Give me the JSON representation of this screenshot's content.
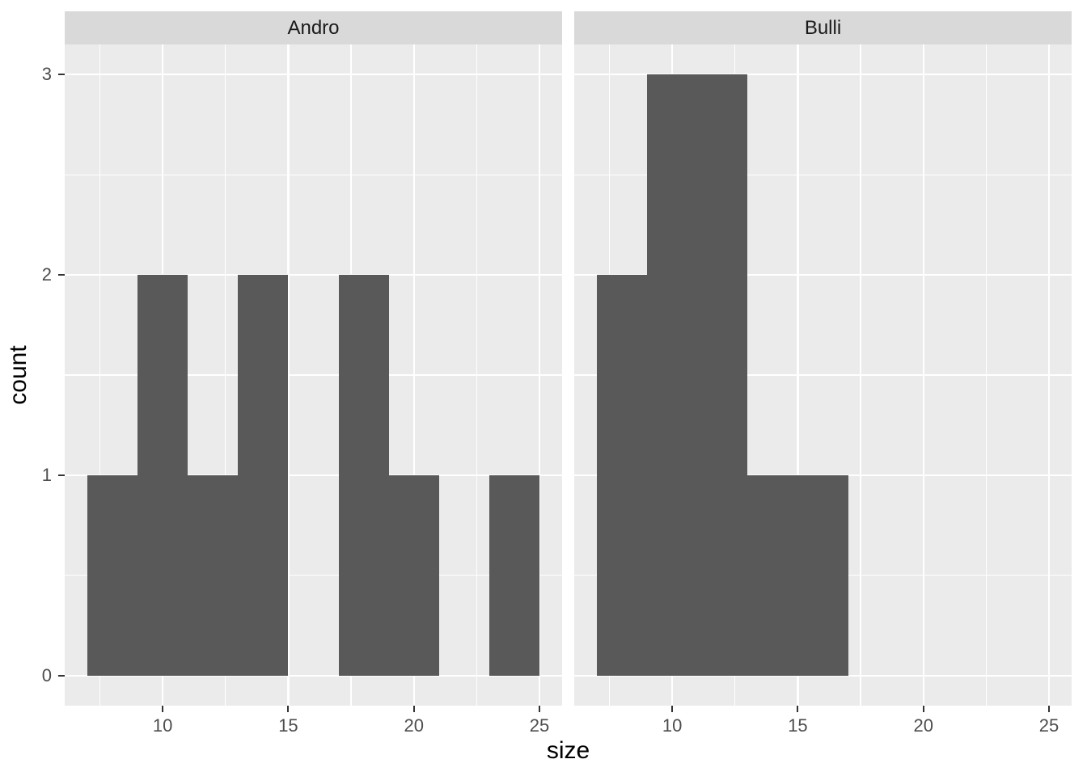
{
  "chart_data": {
    "type": "bar",
    "subtype": "faceted-histogram",
    "xlabel": "size",
    "ylabel": "count",
    "binwidth": 2,
    "xlim": [
      6.1,
      25.9
    ],
    "ylim": [
      -0.15,
      3.15
    ],
    "x_ticks": [
      10,
      15,
      20,
      25
    ],
    "x_minor_ticks": [
      7.5,
      12.5,
      17.5,
      22.5
    ],
    "y_ticks": [
      0,
      1,
      2,
      3
    ],
    "y_minor_ticks": [
      0.5,
      1.5,
      2.5
    ],
    "grid": "on",
    "legend": "none",
    "facets": [
      {
        "label": "Andro",
        "bins": [
          {
            "x0": 7,
            "x1": 9,
            "count": 1
          },
          {
            "x0": 9,
            "x1": 11,
            "count": 2
          },
          {
            "x0": 11,
            "x1": 13,
            "count": 1
          },
          {
            "x0": 13,
            "x1": 15,
            "count": 2
          },
          {
            "x0": 15,
            "x1": 17,
            "count": 0
          },
          {
            "x0": 17,
            "x1": 19,
            "count": 2
          },
          {
            "x0": 19,
            "x1": 21,
            "count": 1
          },
          {
            "x0": 21,
            "x1": 23,
            "count": 0
          },
          {
            "x0": 23,
            "x1": 25,
            "count": 1
          }
        ]
      },
      {
        "label": "Bulli",
        "bins": [
          {
            "x0": 7,
            "x1": 9,
            "count": 2
          },
          {
            "x0": 9,
            "x1": 11,
            "count": 3
          },
          {
            "x0": 11,
            "x1": 13,
            "count": 3
          },
          {
            "x0": 13,
            "x1": 15,
            "count": 1
          },
          {
            "x0": 15,
            "x1": 17,
            "count": 1
          }
        ]
      }
    ],
    "colors": {
      "bar_fill": "#595959",
      "panel_background": "#EBEBEB",
      "strip_background": "#D9D9D9",
      "strip_text": "#1A1A1A",
      "gridline": "#FFFFFF",
      "axis_text": "#4D4D4D",
      "axis_title": "#000000",
      "tick_mark": "#333333",
      "figure_background": "#FFFFFF"
    }
  }
}
